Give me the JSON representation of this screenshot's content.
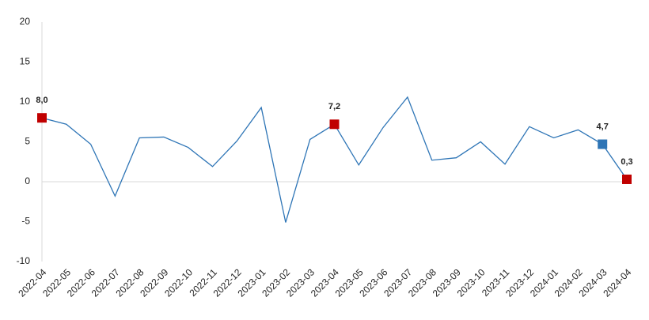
{
  "chart_data": {
    "type": "line",
    "categories": [
      "2022-04",
      "2022-05",
      "2022-06",
      "2022-07",
      "2022-08",
      "2022-09",
      "2022-10",
      "2022-11",
      "2022-12",
      "2023-01",
      "2023-02",
      "2023-03",
      "2023-04",
      "2023-05",
      "2023-06",
      "2023-07",
      "2023-08",
      "2023-09",
      "2023-10",
      "2023-11",
      "2023-12",
      "2024-01",
      "2024-02",
      "2024-03",
      "2024-04"
    ],
    "series": [
      {
        "color": "#2e75b6",
        "values": [
          8.0,
          7.2,
          4.7,
          -1.8,
          5.5,
          5.6,
          4.3,
          1.9,
          5.1,
          9.3,
          -5.1,
          5.3,
          7.2,
          2.1,
          6.8,
          10.6,
          2.7,
          3.0,
          5.0,
          2.2,
          6.9,
          5.5,
          6.5,
          4.7,
          0.3
        ],
        "value_labels": [
          "8,0",
          null,
          null,
          null,
          null,
          null,
          null,
          null,
          null,
          null,
          null,
          null,
          "7,2",
          null,
          null,
          null,
          null,
          null,
          null,
          null,
          null,
          null,
          null,
          "4,7",
          "0,3"
        ],
        "marker_colors": [
          "#c00000",
          null,
          null,
          null,
          null,
          null,
          null,
          null,
          null,
          null,
          null,
          null,
          "#c00000",
          null,
          null,
          null,
          null,
          null,
          null,
          null,
          null,
          null,
          null,
          "#2e75b6",
          "#c00000"
        ]
      }
    ],
    "ylim": [
      -10,
      20
    ],
    "yticks": [
      -10,
      -5,
      0,
      5,
      10,
      15,
      20
    ]
  }
}
